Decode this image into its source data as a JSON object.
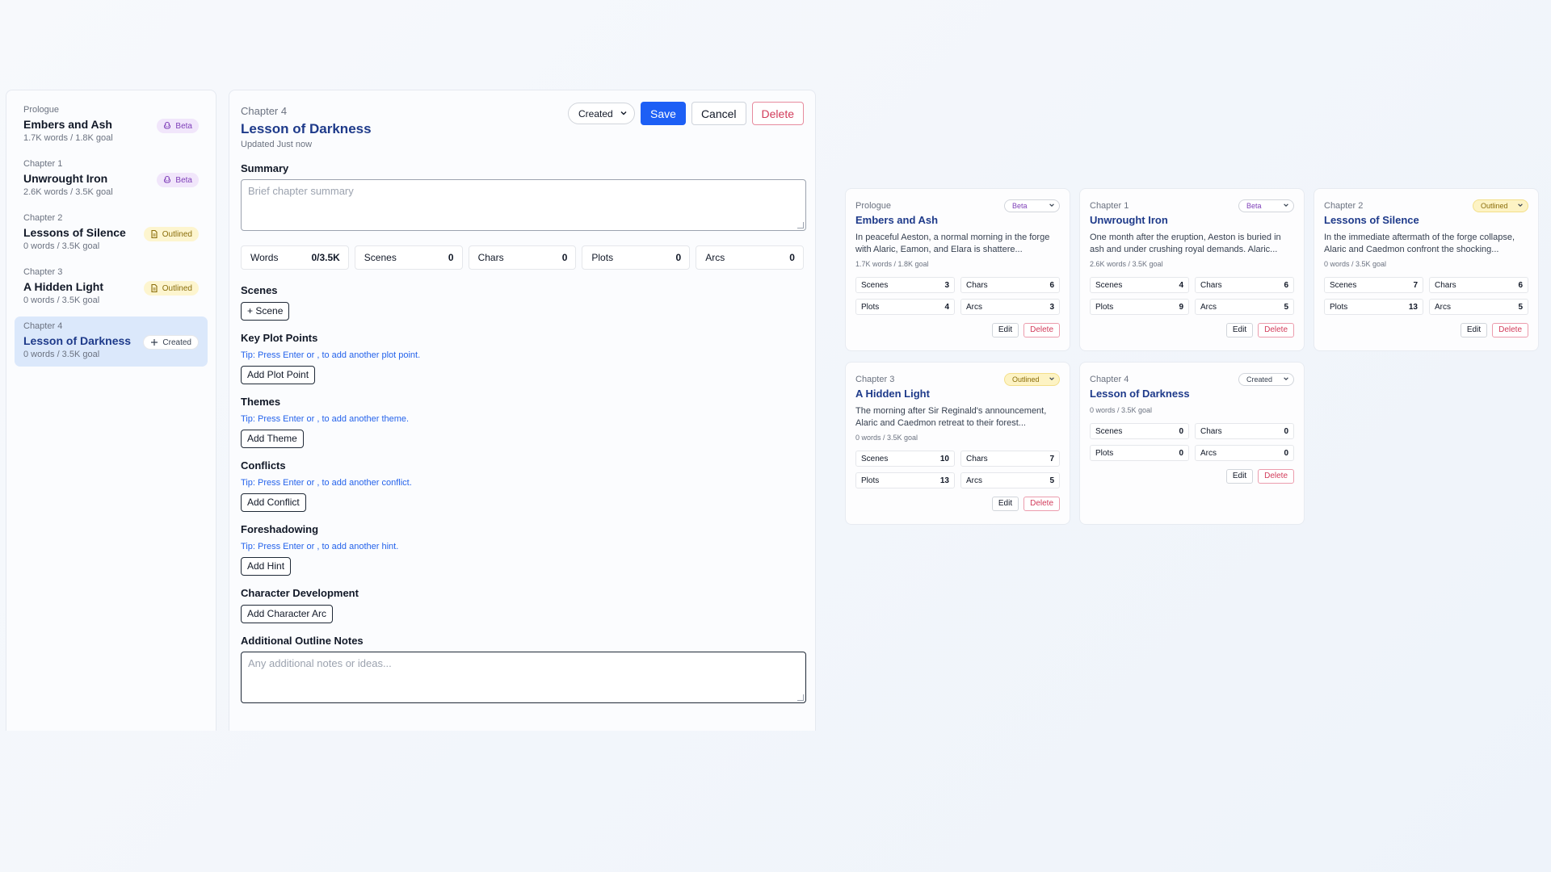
{
  "sidebar": {
    "items": [
      {
        "label": "Prologue",
        "title": "Embers and Ash",
        "meta": "1.7K words / 1.8K goal",
        "status": "Beta",
        "status_icon": "beta-icon"
      },
      {
        "label": "Chapter 1",
        "title": "Unwrought Iron",
        "meta": "2.6K words / 3.5K goal",
        "status": "Beta",
        "status_icon": "beta-icon"
      },
      {
        "label": "Chapter 2",
        "title": "Lessons of Silence",
        "meta": "0 words / 3.5K goal",
        "status": "Outlined",
        "status_icon": "document-icon"
      },
      {
        "label": "Chapter 3",
        "title": "A Hidden Light",
        "meta": "0 words / 3.5K goal",
        "status": "Outlined",
        "status_icon": "document-icon"
      },
      {
        "label": "Chapter 4",
        "title": "Lesson of Darkness",
        "meta": "0 words / 3.5K goal",
        "status": "Created",
        "status_icon": "plus-icon",
        "selected": true
      }
    ]
  },
  "editor": {
    "chapter_label": "Chapter 4",
    "title": "Lesson of Darkness",
    "updated": "Updated Just now",
    "status_select": "Created",
    "save_label": "Save",
    "cancel_label": "Cancel",
    "delete_label": "Delete",
    "summary_heading": "Summary",
    "summary_placeholder": "Brief chapter summary",
    "stats": [
      {
        "label": "Words",
        "value": "0/3.5K"
      },
      {
        "label": "Scenes",
        "value": "0"
      },
      {
        "label": "Chars",
        "value": "0"
      },
      {
        "label": "Plots",
        "value": "0"
      },
      {
        "label": "Arcs",
        "value": "0"
      }
    ],
    "scenes_heading": "Scenes",
    "add_scene_label": "+ Scene",
    "plot_heading": "Key Plot Points",
    "plot_tip": "Tip: Press Enter or , to add another plot point.",
    "plot_button": "Add Plot Point",
    "themes_heading": "Themes",
    "themes_tip": "Tip: Press Enter or , to add another theme.",
    "themes_button": "Add Theme",
    "conflicts_heading": "Conflicts",
    "conflicts_tip": "Tip: Press Enter or , to add another conflict.",
    "conflicts_button": "Add Conflict",
    "foreshadowing_heading": "Foreshadowing",
    "foreshadowing_tip": "Tip: Press Enter or , to add another hint.",
    "foreshadowing_button": "Add Hint",
    "chardev_heading": "Character Development",
    "chardev_button": "Add Character Arc",
    "notes_heading": "Additional Outline Notes",
    "notes_placeholder": "Any additional notes or ideas..."
  },
  "cards": [
    {
      "label": "Prologue",
      "title": "Embers and Ash",
      "status": "Beta",
      "desc": "In peaceful Aeston, a normal morning in the forge with Alaric, Eamon, and Elara is shattere...",
      "meta": "1.7K words / 1.8K goal",
      "stats": [
        {
          "label": "Scenes",
          "value": "3"
        },
        {
          "label": "Chars",
          "value": "6"
        },
        {
          "label": "Plots",
          "value": "4"
        },
        {
          "label": "Arcs",
          "value": "3"
        }
      ],
      "edit": "Edit",
      "delete": "Delete"
    },
    {
      "label": "Chapter 1",
      "title": "Unwrought Iron",
      "status": "Beta",
      "desc": "One month after the eruption, Aeston is buried in ash and under crushing royal demands. Alaric...",
      "meta": "2.6K words / 3.5K goal",
      "stats": [
        {
          "label": "Scenes",
          "value": "4"
        },
        {
          "label": "Chars",
          "value": "6"
        },
        {
          "label": "Plots",
          "value": "9"
        },
        {
          "label": "Arcs",
          "value": "5"
        }
      ],
      "edit": "Edit",
      "delete": "Delete"
    },
    {
      "label": "Chapter 2",
      "title": "Lessons of Silence",
      "status": "Outlined",
      "desc": "In the immediate aftermath of the forge collapse, Alaric and Caedmon confront the shocking...",
      "meta": "0 words / 3.5K goal",
      "stats": [
        {
          "label": "Scenes",
          "value": "7"
        },
        {
          "label": "Chars",
          "value": "6"
        },
        {
          "label": "Plots",
          "value": "13"
        },
        {
          "label": "Arcs",
          "value": "5"
        }
      ],
      "edit": "Edit",
      "delete": "Delete"
    },
    {
      "label": "Chapter 3",
      "title": "A Hidden Light",
      "status": "Outlined",
      "desc": "The morning after Sir Reginald's announcement, Alaric and Caedmon retreat to their forest...",
      "meta": "0 words / 3.5K goal",
      "stats": [
        {
          "label": "Scenes",
          "value": "10"
        },
        {
          "label": "Chars",
          "value": "7"
        },
        {
          "label": "Plots",
          "value": "13"
        },
        {
          "label": "Arcs",
          "value": "5"
        }
      ],
      "edit": "Edit",
      "delete": "Delete"
    },
    {
      "label": "Chapter 4",
      "title": "Lesson of Darkness",
      "status": "Created",
      "desc": "",
      "meta": "0 words / 3.5K goal",
      "stats": [
        {
          "label": "Scenes",
          "value": "0"
        },
        {
          "label": "Chars",
          "value": "0"
        },
        {
          "label": "Plots",
          "value": "0"
        },
        {
          "label": "Arcs",
          "value": "0"
        }
      ],
      "edit": "Edit",
      "delete": "Delete"
    }
  ],
  "colors": {
    "accent": "#1d5ff5",
    "title": "#1e3a8a",
    "danger": "#d23b5a",
    "beta": "#7e3fb8",
    "outlined": "#8a6d0a"
  }
}
